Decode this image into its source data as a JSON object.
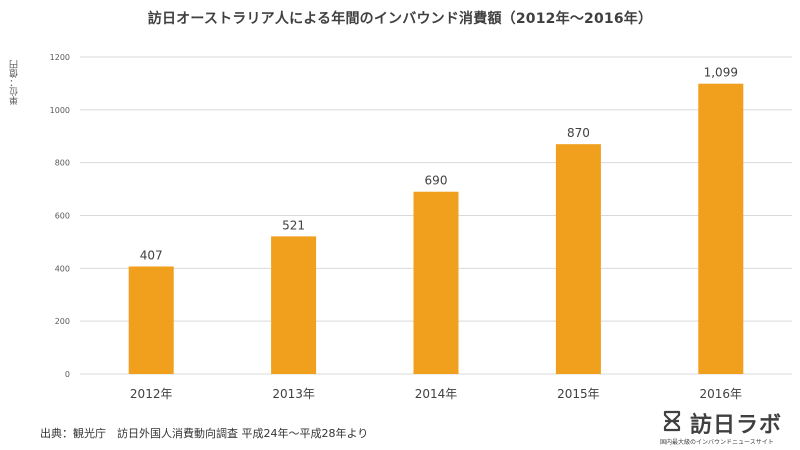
{
  "chart_data": {
    "type": "bar",
    "title": "訪日オーストラリア人による年間のインバウンド消費額（2012年～2016年）",
    "ylabel": "単位：億円",
    "categories": [
      "2012年",
      "2013年",
      "2014年",
      "2015年",
      "2016年"
    ],
    "values": [
      407,
      521,
      690,
      870,
      1099
    ],
    "value_labels": [
      "407",
      "521",
      "690",
      "870",
      "1,099"
    ],
    "ylim": [
      0,
      1200
    ],
    "yticks": [
      0,
      200,
      400,
      600,
      800,
      1000,
      1200
    ],
    "ytick_labels": [
      "0",
      "200",
      "400",
      "600",
      "800",
      "1000",
      "1200"
    ],
    "grid": true,
    "bar_color": "#f0a01d",
    "grid_color": "#d9d9d9"
  },
  "source": "出典：観光庁　訪日外国人消費動向調査 平成24年～平成28年より",
  "brand": {
    "name": "訪日ラボ",
    "tagline": "国内最大級のインバウンドニュースサイト",
    "icon": "hourglass-logo-icon"
  }
}
